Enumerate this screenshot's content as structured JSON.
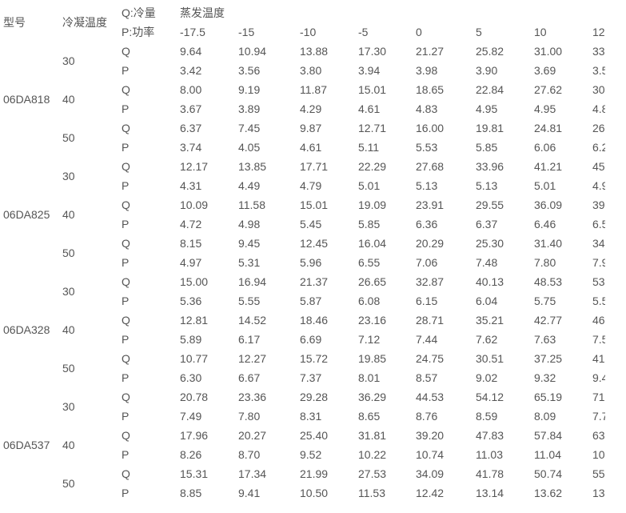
{
  "header": {
    "model_label": "型号",
    "cond_temp_label": "冷凝温度",
    "q_legend": "Q:冷量",
    "p_legend": "P:功率",
    "evap_temp_label": "蒸发温度",
    "evap_temps": [
      "-17.5",
      "-15",
      "-10",
      "-5",
      "0",
      "5",
      "10",
      "12"
    ]
  },
  "models": [
    {
      "name": "06DA818",
      "groups": [
        {
          "temp": "30",
          "Q": [
            "9.64",
            "10.94",
            "13.88",
            "17.30",
            "21.27",
            "25.82",
            "31.00",
            "33"
          ],
          "P": [
            "3.42",
            "3.56",
            "3.80",
            "3.94",
            "3.98",
            "3.90",
            "3.69",
            "3.5"
          ]
        },
        {
          "temp": "40",
          "Q": [
            "8.00",
            "9.19",
            "11.87",
            "15.01",
            "18.65",
            "22.84",
            "27.62",
            "30"
          ],
          "P": [
            "3.67",
            "3.89",
            "4.29",
            "4.61",
            "4.83",
            "4.95",
            "4.95",
            "4.8"
          ]
        },
        {
          "temp": "50",
          "Q": [
            "6.37",
            "7.45",
            "9.87",
            "12.71",
            "16.00",
            "19.81",
            "24.81",
            "26"
          ],
          "P": [
            "3.74",
            "4.05",
            "4.61",
            "5.11",
            "5.53",
            "5.85",
            "6.06",
            "6.2"
          ]
        }
      ]
    },
    {
      "name": "06DA825",
      "groups": [
        {
          "temp": "30",
          "Q": [
            "12.17",
            "13.85",
            "17.71",
            "22.29",
            "27.68",
            "33.96",
            "41.21",
            "45"
          ],
          "P": [
            "4.31",
            "4.49",
            "4.79",
            "5.01",
            "5.13",
            "5.13",
            "5.01",
            "4.9"
          ]
        },
        {
          "temp": "40",
          "Q": [
            "10.09",
            "11.58",
            "15.01",
            "19.09",
            "23.91",
            "29.55",
            "36.09",
            "39"
          ],
          "P": [
            "4.72",
            "4.98",
            "5.45",
            "5.85",
            "6.36",
            "6.37",
            "6.46",
            "6.5"
          ]
        },
        {
          "temp": "50",
          "Q": [
            "8.15",
            "9.45",
            "12.45",
            "16.04",
            "20.29",
            "25.30",
            "31.40",
            "34"
          ],
          "P": [
            "4.97",
            "5.31",
            "5.96",
            "6.55",
            "7.06",
            "7.48",
            "7.80",
            "7.9"
          ]
        }
      ]
    },
    {
      "name": "06DA328",
      "groups": [
        {
          "temp": "30",
          "Q": [
            "15.00",
            "16.94",
            "21.37",
            "26.65",
            "32.87",
            "40.13",
            "48.53",
            "53"
          ],
          "P": [
            "5.36",
            "5.55",
            "5.87",
            "6.08",
            "6.15",
            "6.04",
            "5.75",
            "5.5"
          ]
        },
        {
          "temp": "40",
          "Q": [
            "12.81",
            "14.52",
            "18.46",
            "23.16",
            "28.71",
            "35.21",
            "42.77",
            "46"
          ],
          "P": [
            "5.89",
            "6.17",
            "6.69",
            "7.12",
            "7.44",
            "7.62",
            "7.63",
            "7.5"
          ]
        },
        {
          "temp": "50",
          "Q": [
            "10.77",
            "12.27",
            "15.72",
            "19.85",
            "24.75",
            "30.51",
            "37.25",
            "41"
          ],
          "P": [
            "6.30",
            "6.67",
            "7.37",
            "8.01",
            "8.57",
            "9.02",
            "9.32",
            "9.4"
          ]
        }
      ]
    },
    {
      "name": "06DA537",
      "groups": [
        {
          "temp": "30",
          "Q": [
            "20.78",
            "23.36",
            "29.28",
            "36.29",
            "44.53",
            "54.12",
            "65.19",
            "71"
          ],
          "P": [
            "7.49",
            "7.80",
            "8.31",
            "8.65",
            "8.76",
            "8.59",
            "8.09",
            "7.7"
          ]
        },
        {
          "temp": "40",
          "Q": [
            "17.96",
            "20.27",
            "25.40",
            "31.81",
            "39.20",
            "47.83",
            "57.84",
            "63"
          ],
          "P": [
            "8.26",
            "8.70",
            "9.52",
            "10.22",
            "10.74",
            "11.03",
            "11.04",
            "10"
          ]
        },
        {
          "temp": "50",
          "Q": [
            "15.31",
            "17.34",
            "21.99",
            "27.53",
            "34.09",
            "41.78",
            "50.74",
            "55"
          ],
          "P": [
            "8.85",
            "9.41",
            "10.50",
            "11.53",
            "12.42",
            "13.14",
            "13.62",
            "13"
          ]
        }
      ]
    }
  ]
}
